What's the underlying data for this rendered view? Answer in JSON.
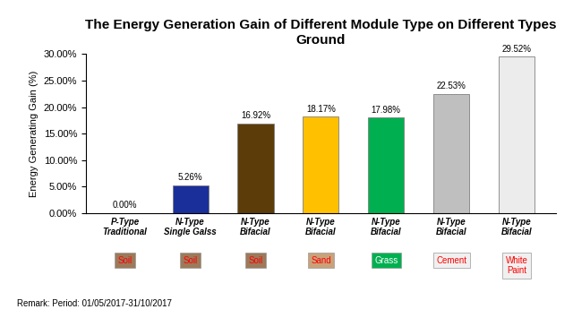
{
  "chart_data": {
    "type": "bar",
    "title": "The Energy Generation Gain of Different Module Type on Different Types Ground",
    "y_label": "Energy Generating Gain (%)",
    "categories": [
      "P-Type\nTraditional",
      "N-Type\nSingle Galss",
      "N-Type\nBifacial",
      "N-Type\nBifacial",
      "N-Type\nBifacial",
      "N-Type\nBifacial",
      "N-Type\nBifacial"
    ],
    "ground_labels": [
      "Soil",
      "Soil",
      "Soil",
      "Sand",
      "Grass",
      "Cement",
      "White\nPaint"
    ],
    "values": [
      0.0,
      5.26,
      16.92,
      18.17,
      17.98,
      22.53,
      29.52
    ],
    "value_labels": [
      "0.00%",
      "5.26%",
      "16.92%",
      "18.17%",
      "17.98%",
      "22.53%",
      "29.52%"
    ],
    "colors": [
      "#1f2d8a",
      "#1a2f9a",
      "#5c3d0a",
      "#ffc000",
      "#00b050",
      "#bfbfbf",
      "#ececec"
    ],
    "ylim": [
      0,
      30
    ],
    "yticks": [
      {
        "value": 0,
        "label": "0.00%"
      },
      {
        "value": 5,
        "label": "5.00%"
      },
      {
        "value": 10,
        "label": "10.00%"
      },
      {
        "value": 15,
        "label": "15.00%"
      },
      {
        "value": 20,
        "label": "20.00%"
      },
      {
        "value": 25,
        "label": "25.00%"
      },
      {
        "value": 30,
        "label": "30.00%"
      }
    ],
    "grid": false,
    "data_labels": true,
    "note": "Remark: Period: 01/05/2017-31/10/2017"
  }
}
